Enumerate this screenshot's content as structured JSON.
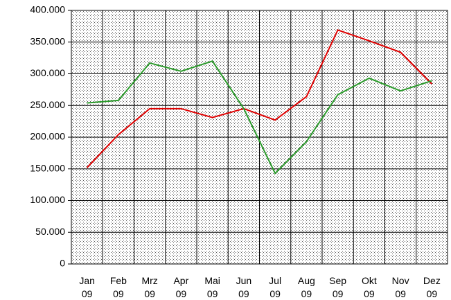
{
  "chart_data": {
    "type": "line",
    "categories": [
      "Jan 09",
      "Feb 09",
      "Mrz 09",
      "Apr 09",
      "Mai 09",
      "Jun 09",
      "Jul 09",
      "Aug 09",
      "Sep 09",
      "Okt 09",
      "Nov 09",
      "Dez 09"
    ],
    "series": [
      {
        "color": "#e00000",
        "values": [
          152000,
          204000,
          245000,
          245000,
          231000,
          245000,
          227000,
          264000,
          369000,
          352000,
          334000,
          284000
        ]
      },
      {
        "color": "#2a9a2a",
        "values": [
          254000,
          258000,
          317000,
          304000,
          320000,
          245000,
          143000,
          193000,
          267000,
          293000,
          273000,
          289000
        ]
      }
    ],
    "ylim": [
      0,
      400000
    ],
    "yticks": [
      0,
      {
        "value": 50000,
        "label": "50.000"
      },
      {
        "value": 100000,
        "label": "100.000"
      },
      {
        "value": 150000,
        "label": "150.000"
      },
      {
        "value": 200000,
        "label": "200.000"
      },
      {
        "value": 250000,
        "label": "250.000"
      },
      {
        "value": 300000,
        "label": "300.000"
      },
      {
        "value": 350000,
        "label": "350.000"
      },
      {
        "value": 400000,
        "label": "400.000"
      }
    ],
    "grid": true
  }
}
